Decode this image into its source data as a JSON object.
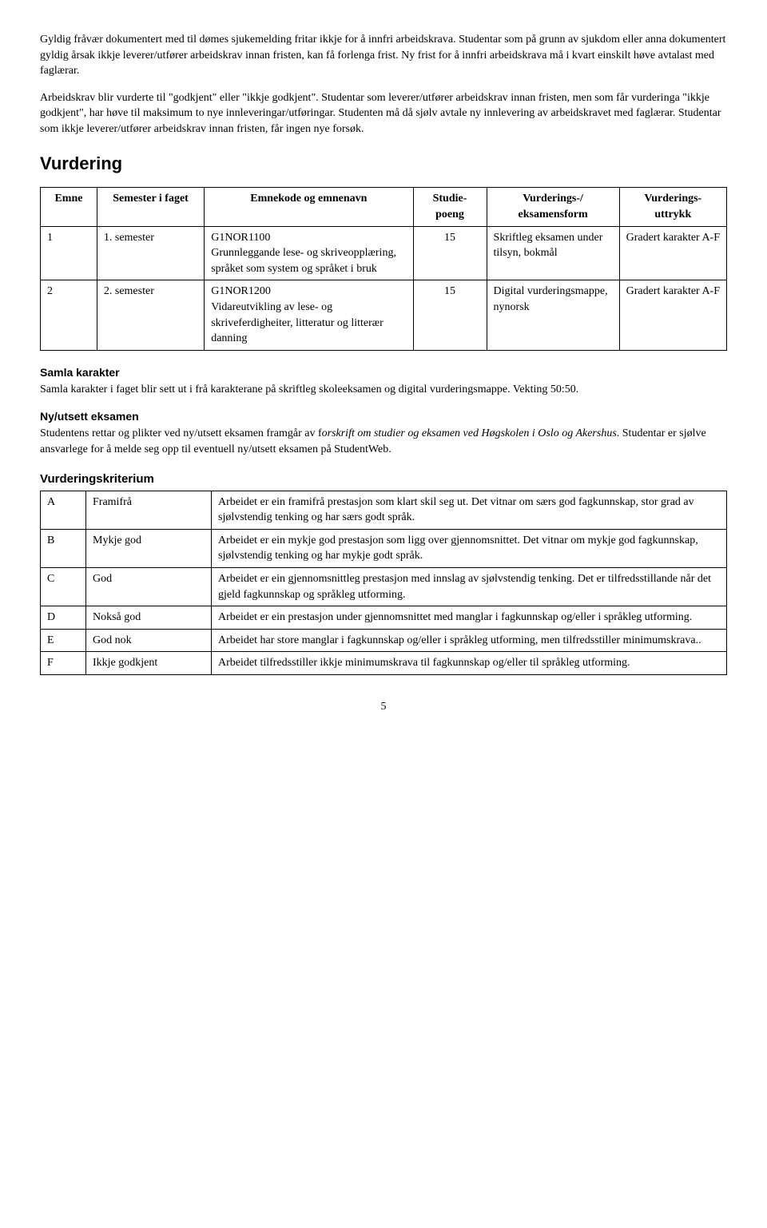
{
  "intro": {
    "para1": "Gyldig fråvær dokumentert med til dømes sjukemelding fritar ikkje for å innfri arbeidskrava. Studentar som på grunn av sjukdom eller anna dokumentert gyldig årsak ikkje leverer/utfører arbeidskrav innan fristen, kan få forlenga frist. Ny frist for å innfri arbeidskrava må i kvart einskilt høve avtalast med faglærar.",
    "para2": "Arbeidskrav blir vurderte til \"godkjent\" eller \"ikkje godkjent\". Studentar som leverer/utfører arbeidskrav innan fristen, men som får vurderinga \"ikkje godkjent\", har høve til maksimum to nye innleveringar/utføringar. Studenten må då sjølv avtale ny innlevering av arbeidskravet med faglærar. Studentar som ikkje leverer/utfører arbeidskrav innan fristen, får ingen nye forsøk."
  },
  "heading_vurdering": "Vurdering",
  "table1": {
    "headers": [
      "Emne",
      "Semester i faget",
      "Emnekode og emnenavn",
      "Studie-poeng",
      "Vurderings-/ eksamensform",
      "Vurderings-uttrykk"
    ],
    "rows": [
      {
        "emne": "1",
        "semester": "1. semester",
        "kode": "G1NOR1100",
        "navn": "Grunnleggande lese- og skriveopplæring, språket som system og språket i bruk",
        "poeng": "15",
        "form": "Skriftleg eksamen under tilsyn, bokmål",
        "uttrykk": "Gradert karakter A-F"
      },
      {
        "emne": "2",
        "semester": "2. semester",
        "kode": "G1NOR1200",
        "navn": "Vidareutvikling av lese- og skriveferdigheiter, litteratur og litterær danning",
        "poeng": "15",
        "form": "Digital vurderingsmappe, nynorsk",
        "uttrykk": "Gradert karakter A-F"
      }
    ]
  },
  "samla": {
    "heading": "Samla karakter",
    "text": "Samla karakter i faget blir sett ut i frå karakterane på skriftleg skoleeksamen og digital vurderingsmappe. Vekting 50:50."
  },
  "nyutsett": {
    "heading": "Ny/utsett eksamen",
    "text_before_italic": "Studentens rettar og plikter ved ny/utsett eksamen framgår av f",
    "italic": "orskrift om studier og eksamen ved Høgskolen i Oslo og Akershus",
    "text_after_italic": ". Studentar er sjølve ansvarlege for å melde seg opp til eventuell ny/utsett eksamen på StudentWeb."
  },
  "kriterium": {
    "heading": "Vurderingskriterium",
    "rows": [
      {
        "grade": "A",
        "label": "Framifrå",
        "desc": "Arbeidet er ein framifrå prestasjon som klart skil seg ut. Det vitnar om særs god fagkunnskap, stor grad av sjølvstendig tenking og har særs godt språk."
      },
      {
        "grade": "B",
        "label": "Mykje god",
        "desc": "Arbeidet er ein mykje god prestasjon som ligg over gjennomsnittet. Det vitnar om mykje god fagkunnskap, sjølvstendig tenking og har mykje godt språk."
      },
      {
        "grade": "C",
        "label": "God",
        "desc": "Arbeidet er ein gjennomsnittleg prestasjon med innslag av sjølvstendig tenking. Det er tilfredsstillande når det gjeld fagkunnskap og språkleg utforming."
      },
      {
        "grade": "D",
        "label": "Nokså god",
        "desc": "Arbeidet er ein prestasjon under gjennomsnittet med manglar i fagkunnskap og/eller i språkleg utforming."
      },
      {
        "grade": "E",
        "label": "God nok",
        "desc": "Arbeidet har store manglar i fagkunnskap og/eller i språkleg utforming, men tilfredsstiller minimumskrava.."
      },
      {
        "grade": "F",
        "label": "Ikkje godkjent",
        "desc": "Arbeidet tilfredsstiller ikkje minimumskrava til fagkunnskap og/eller til språkleg utforming."
      }
    ]
  },
  "page_number": "5"
}
